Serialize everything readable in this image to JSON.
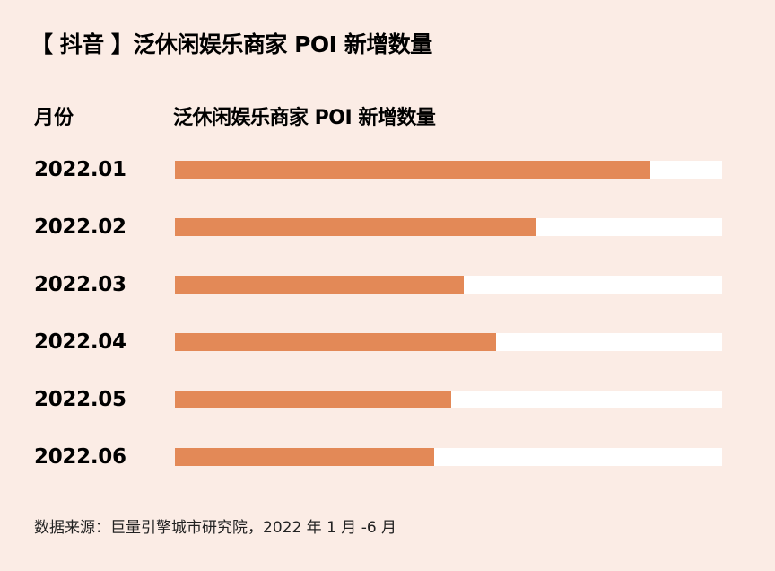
{
  "title": "【 抖音 】泛休闲娱乐商家 POI 新增数量",
  "header": {
    "month_label": "月份",
    "metric_label": "泛休闲娱乐商家 POI 新增数量"
  },
  "colors": {
    "background": "#fbece5",
    "bar": "#e38957",
    "track": "#ffffff"
  },
  "source": "数据来源：巨量引擎城市研究院，2022 年 1 月 -6 月",
  "chart_data": {
    "type": "bar",
    "orientation": "horizontal",
    "title": "【 抖音 】泛休闲娱乐商家 POI 新增数量",
    "xlabel": "泛休闲娱乐商家 POI 新增数量",
    "ylabel": "月份",
    "categories": [
      "2022.01",
      "2022.02",
      "2022.03",
      "2022.04",
      "2022.05",
      "2022.06"
    ],
    "values": [
      86.9,
      65.9,
      52.8,
      58.7,
      50.5,
      47.3
    ],
    "value_unit": "relative % of track (no axis/values shown)",
    "xlim": [
      0,
      100
    ],
    "grid": false,
    "legend": "none"
  },
  "rows": [
    {
      "label": "2022.01",
      "pct": 86.9
    },
    {
      "label": "2022.02",
      "pct": 65.9
    },
    {
      "label": "2022.03",
      "pct": 52.8
    },
    {
      "label": "2022.04",
      "pct": 58.7
    },
    {
      "label": "2022.05",
      "pct": 50.5
    },
    {
      "label": "2022.06",
      "pct": 47.3
    }
  ]
}
